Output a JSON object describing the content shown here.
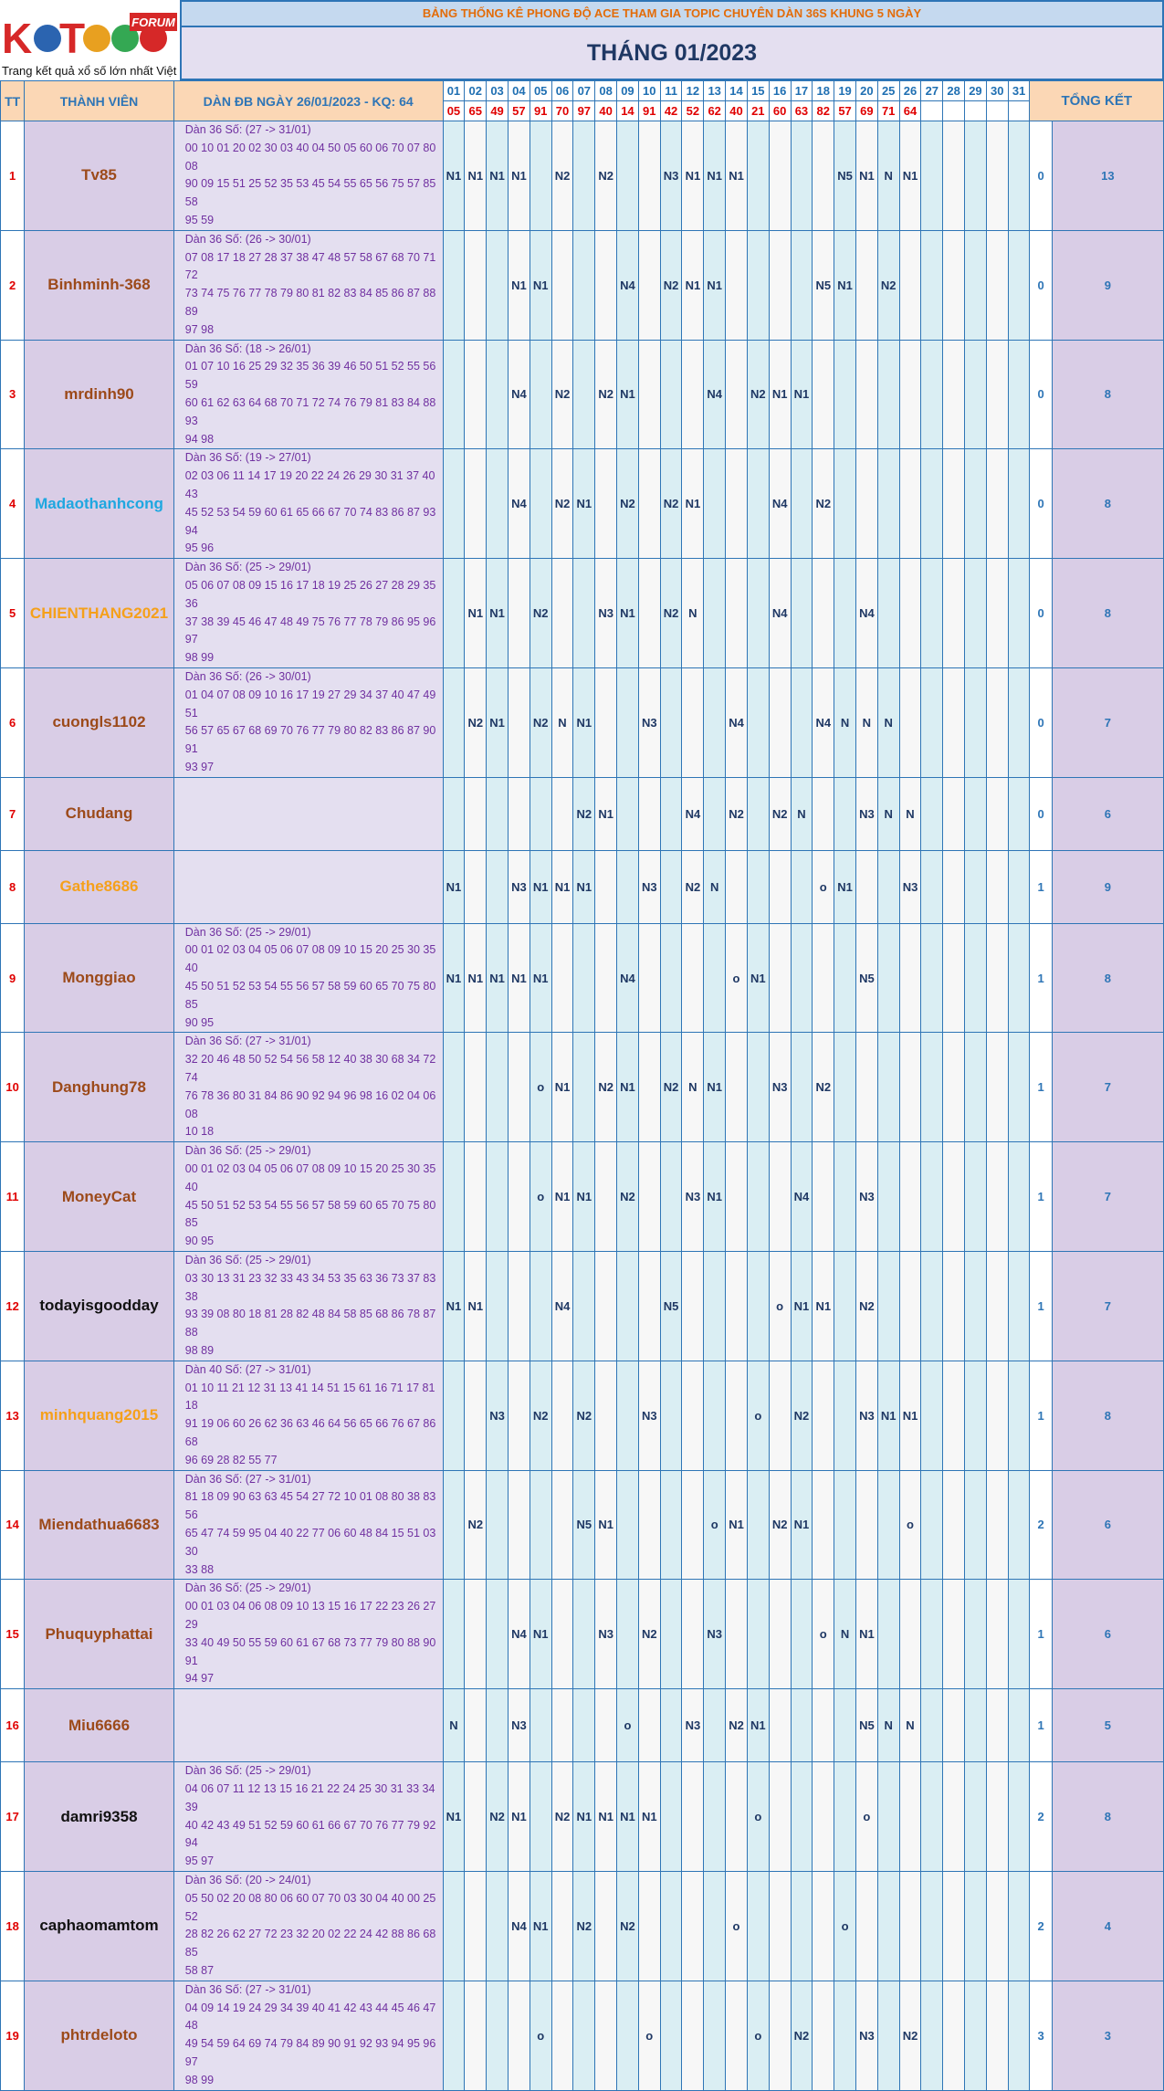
{
  "logo": {
    "main": "KETQUA2",
    "tag": "FORUM",
    "slogan": "Trang kết quả xổ số lớn nhất Việt Nam"
  },
  "banner": "BẢNG THỐNG KÊ PHONG ĐỘ ACE THAM GIA TOPIC CHUYÊN DÀN 36S KHUNG 5 NGÀY",
  "month": "THÁNG 01/2023",
  "headers": {
    "tt": "TT",
    "member": "THÀNH VIÊN",
    "dan": "DÀN ĐB NGÀY 26/01/2023 - KQ: 64",
    "summary": "TỔNG KẾT"
  },
  "days": [
    "01",
    "02",
    "03",
    "04",
    "05",
    "06",
    "07",
    "08",
    "09",
    "10",
    "11",
    "12",
    "13",
    "14",
    "15",
    "16",
    "17",
    "18",
    "19",
    "20",
    "25",
    "26",
    "27",
    "28",
    "29",
    "30",
    "31"
  ],
  "results": [
    "05",
    "65",
    "49",
    "57",
    "91",
    "70",
    "97",
    "40",
    "14",
    "91",
    "42",
    "52",
    "62",
    "40",
    "21",
    "60",
    "63",
    "82",
    "57",
    "69",
    "71",
    "64",
    "",
    "",
    "",
    "",
    ""
  ],
  "colors": {
    "header_bg": "#fbd7b5",
    "member_bg": "#d9cde6",
    "dan_bg": "#e4dff0",
    "day_even": "#daeef3",
    "accent_blue": "#2e75b6",
    "result_red": "#e00000",
    "banner_orange": "#e36c09"
  },
  "rows": [
    {
      "tt": "1",
      "name": "Tv85",
      "color": "brown",
      "dan": [
        "Dàn 36 Số: (27 -> 31/01)",
        "00 10 01 20 02 30 03 40 04 50 05 60 06 70 07 80 08",
        "90 09 15 51 25 52 35 53 45 54 55 65 56 75 57 85 58",
        "95 59"
      ],
      "marks": [
        "N1",
        "N1",
        "N1",
        "N1",
        "",
        "N2",
        "",
        "N2",
        "",
        "",
        "N3",
        "N1",
        "N1",
        "N1",
        "",
        "",
        "",
        "",
        "N5",
        "N1",
        "N",
        "N1",
        "",
        "",
        "",
        "",
        ""
      ],
      "s1": "0",
      "s2": "13"
    },
    {
      "tt": "2",
      "name": "Binhminh-368",
      "color": "brown",
      "dan": [
        "Dàn 36 Số: (26 -> 30/01)",
        "07 08 17 18 27 28 37 38 47 48 57 58 67 68 70 71 72",
        "73 74 75 76 77 78 79 80 81 82 83 84 85 86 87 88 89",
        "97 98"
      ],
      "marks": [
        "",
        "",
        "",
        "N1",
        "N1",
        "",
        "",
        "",
        "N4",
        "",
        "N2",
        "N1",
        "N1",
        "",
        "",
        "",
        "",
        "N5",
        "N1",
        "",
        "N2",
        "",
        "",
        "",
        "",
        "",
        ""
      ],
      "s1": "0",
      "s2": "9"
    },
    {
      "tt": "3",
      "name": "mrdinh90",
      "color": "brown",
      "dan": [
        "Dàn 36 Số: (18 -> 26/01)",
        "01 07 10 16 25 29 32 35 36 39 46 50 51 52 55 56 59",
        "60 61 62 63 64 68 70 71 72 74 76 79 81 83 84 88 93",
        "94 98"
      ],
      "marks": [
        "",
        "",
        "",
        "N4",
        "",
        "N2",
        "",
        "N2",
        "N1",
        "",
        "",
        "",
        "N4",
        "",
        "N2",
        "N1",
        "N1",
        "",
        "",
        "",
        "",
        "",
        "",
        "",
        "",
        "",
        ""
      ],
      "s1": "0",
      "s2": "8"
    },
    {
      "tt": "4",
      "name": "Madaothanhcong",
      "color": "blue",
      "dan": [
        "Dàn 36 Số: (19 -> 27/01)",
        "02 03 06 11 14 17 19 20 22 24 26 29 30 31 37 40 43",
        "45 52 53 54 59 60 61 65 66 67 70 74 83 86 87 93 94",
        "95 96"
      ],
      "marks": [
        "",
        "",
        "",
        "N4",
        "",
        "N2",
        "N1",
        "",
        "N2",
        "",
        "N2",
        "N1",
        "",
        "",
        "",
        "N4",
        "",
        "N2",
        "",
        "",
        "",
        "",
        "",
        "",
        "",
        "",
        ""
      ],
      "s1": "0",
      "s2": "8"
    },
    {
      "tt": "5",
      "name": "CHIENTHANG2021",
      "color": "orange",
      "dan": [
        "Dàn 36 Số: (25 -> 29/01)",
        "05 06 07 08 09 15 16 17 18 19 25 26 27 28 29 35 36",
        "37 38 39 45 46 47 48 49 75 76 77 78 79 86 95 96 97",
        "98 99"
      ],
      "marks": [
        "",
        "N1",
        "N1",
        "",
        "N2",
        "",
        "",
        "N3",
        "N1",
        "",
        "N2",
        "N",
        "",
        "",
        "",
        "N4",
        "",
        "",
        "",
        "N4",
        "",
        "",
        "",
        "",
        "",
        "",
        ""
      ],
      "s1": "0",
      "s2": "8"
    },
    {
      "tt": "6",
      "name": "cuongls1102",
      "color": "brown",
      "dan": [
        "Dàn 36 Số: (26 -> 30/01)",
        "01 04 07 08 09 10 16 17 19 27 29 34 37 40 47 49 51",
        "56 57 65 67 68 69 70 76 77 79 80 82 83 86 87 90 91",
        "93 97"
      ],
      "marks": [
        "",
        "N2",
        "N1",
        "",
        "N2",
        "N",
        "N1",
        "",
        "",
        "N3",
        "",
        "",
        "",
        "N4",
        "",
        "",
        "",
        "N4",
        "N",
        "N",
        "N",
        "",
        "",
        "",
        "",
        "",
        ""
      ],
      "s1": "0",
      "s2": "7"
    },
    {
      "tt": "7",
      "name": "Chudang",
      "color": "brown",
      "dan": [],
      "marks": [
        "",
        "",
        "",
        "",
        "",
        "",
        "N2",
        "N1",
        "",
        "",
        "",
        "N4",
        "",
        "N2",
        "",
        "N2",
        "N",
        "",
        "",
        "N3",
        "N",
        "N",
        "",
        "",
        "",
        "",
        ""
      ],
      "s1": "0",
      "s2": "6"
    },
    {
      "tt": "8",
      "name": "Gathe8686",
      "color": "orange",
      "dan": [],
      "marks": [
        "N1",
        "",
        "",
        "N3",
        "N1",
        "N1",
        "N1",
        "",
        "",
        "N3",
        "",
        "N2",
        "N",
        "",
        "",
        "",
        "",
        "o",
        "N1",
        "",
        "",
        "N3",
        "",
        "",
        "",
        "",
        ""
      ],
      "s1": "1",
      "s2": "9"
    },
    {
      "tt": "9",
      "name": "Monggiao",
      "color": "brown",
      "dan": [
        "Dàn 36 Số: (25 -> 29/01)",
        "00 01 02 03 04 05 06 07 08 09 10 15 20 25 30 35 40",
        "45 50 51 52 53 54 55 56 57 58 59 60 65 70 75 80 85",
        "90 95"
      ],
      "marks": [
        "N1",
        "N1",
        "N1",
        "N1",
        "N1",
        "",
        "",
        "",
        "N4",
        "",
        "",
        "",
        "",
        "o",
        "N1",
        "",
        "",
        "",
        "",
        "N5",
        "",
        "",
        "",
        "",
        "",
        "",
        ""
      ],
      "s1": "1",
      "s2": "8"
    },
    {
      "tt": "10",
      "name": "Danghung78",
      "color": "brown",
      "dan": [
        "Dàn 36 Số: (27 -> 31/01)",
        "32 20 46 48 50 52 54 56 58 12 40 38 30 68 34 72 74",
        "76 78 36 80 31 84 86 90 92 94 96 98 16 02 04 06 08",
        "10 18"
      ],
      "marks": [
        "",
        "",
        "",
        "",
        "o",
        "N1",
        "",
        "N2",
        "N1",
        "",
        "N2",
        "N",
        "N1",
        "",
        "",
        "N3",
        "",
        "N2",
        "",
        "",
        "",
        "",
        "",
        "",
        "",
        "",
        ""
      ],
      "s1": "1",
      "s2": "7"
    },
    {
      "tt": "11",
      "name": "MoneyCat",
      "color": "brown",
      "dan": [
        "Dàn 36 Số: (25 -> 29/01)",
        "00 01 02 03 04 05 06 07 08 09 10 15 20 25 30 35 40",
        "45 50 51 52 53 54 55 56 57 58 59 60 65 70 75 80 85",
        "90 95"
      ],
      "marks": [
        "",
        "",
        "",
        "",
        "o",
        "N1",
        "N1",
        "",
        "N2",
        "",
        "",
        "N3",
        "N1",
        "",
        "",
        "",
        "N4",
        "",
        "",
        "N3",
        "",
        "",
        "",
        "",
        "",
        "",
        ""
      ],
      "s1": "1",
      "s2": "7"
    },
    {
      "tt": "12",
      "name": "todayisgoodday",
      "color": "black",
      "dan": [
        "Dàn 36 Số: (25 -> 29/01)",
        "03 30 13 31 23 32 33 43 34 53 35 63 36 73 37 83 38",
        "93 39 08 80 18 81 28 82 48 84 58 85 68 86 78 87 88",
        "98 89"
      ],
      "marks": [
        "N1",
        "N1",
        "",
        "",
        "",
        "N4",
        "",
        "",
        "",
        "",
        "N5",
        "",
        "",
        "",
        "",
        "o",
        "N1",
        "N1",
        "",
        "N2",
        "",
        "",
        "",
        "",
        "",
        "",
        ""
      ],
      "s1": "1",
      "s2": "7"
    },
    {
      "tt": "13",
      "name": "minhquang2015",
      "color": "orange",
      "dan": [
        "Dàn 40 Số: (27 -> 31/01)",
        "01 10 11 21 12 31 13 41 14 51 15 61 16 71 17 81 18",
        "91 19 06 60 26 62 36 63 46 64 56 65 66 76 67 86 68",
        "96 69 28 82 55 77"
      ],
      "marks": [
        "",
        "",
        "N3",
        "",
        "N2",
        "",
        "N2",
        "",
        "",
        "N3",
        "",
        "",
        "",
        "",
        "o",
        "",
        "N2",
        "",
        "",
        "N3",
        "N1",
        "N1",
        "",
        "",
        "",
        "",
        ""
      ],
      "s1": "1",
      "s2": "8"
    },
    {
      "tt": "14",
      "name": "Miendathua6683",
      "color": "brown",
      "dan": [
        "Dàn 36 Số: (27 -> 31/01)",
        "81 18 09 90 63 63 45 54 27 72 10 01 08 80 38 83 56",
        "65 47 74 59 95 04 40 22 77 06 60 48 84 15 51 03 30",
        "33 88"
      ],
      "marks": [
        "",
        "N2",
        "",
        "",
        "",
        "",
        "N5",
        "N1",
        "",
        "",
        "",
        "",
        "o",
        "N1",
        "",
        "N2",
        "N1",
        "",
        "",
        "",
        "",
        "o",
        "",
        "",
        "",
        "",
        ""
      ],
      "s1": "2",
      "s2": "6"
    },
    {
      "tt": "15",
      "name": "Phuquyphattai",
      "color": "brown",
      "dan": [
        "Dàn 36 Số: (25 -> 29/01)",
        "00 01 03 04 06 08 09 10 13 15 16 17 22 23 26 27 29",
        "33 40 49 50 55 59 60 61 67 68 73 77 79 80 88 90 91",
        "94 97"
      ],
      "marks": [
        "",
        "",
        "",
        "N4",
        "N1",
        "",
        "",
        "N3",
        "",
        "N2",
        "",
        "",
        "N3",
        "",
        "",
        "",
        "",
        "o",
        "N",
        "N1",
        "",
        "",
        "",
        "",
        "",
        "",
        ""
      ],
      "s1": "1",
      "s2": "6"
    },
    {
      "tt": "16",
      "name": "Miu6666",
      "color": "brown",
      "dan": [],
      "marks": [
        "N",
        "",
        "",
        "N3",
        "",
        "",
        "",
        "",
        "o",
        "",
        "",
        "N3",
        "",
        "N2",
        "N1",
        "",
        "",
        "",
        "",
        "N5",
        "N",
        "N",
        "",
        "",
        "",
        "",
        ""
      ],
      "s1": "1",
      "s2": "5"
    },
    {
      "tt": "17",
      "name": "damri9358",
      "color": "black",
      "dan": [
        "Dàn 36 Số: (25 -> 29/01)",
        "04 06 07 11 12 13 15 16 21 22 24 25 30 31 33 34 39",
        "40 42 43 49 51 52 59 60 61 66 67 70 76 77 79 92 94",
        "95 97"
      ],
      "marks": [
        "N1",
        "",
        "N2",
        "N1",
        "",
        "N2",
        "N1",
        "N1",
        "N1",
        "N1",
        "",
        "",
        "",
        "",
        "o",
        "",
        "",
        "",
        "",
        "o",
        "",
        "",
        "",
        "",
        "",
        "",
        ""
      ],
      "s1": "2",
      "s2": "8"
    },
    {
      "tt": "18",
      "name": "caphaomamtom",
      "color": "black",
      "dan": [
        "Dàn 36 Số: (20 -> 24/01)",
        "05 50 02 20 08 80 06 60 07 70 03 30 04 40 00 25 52",
        "28 82 26 62 27 72 23 32 20 02 22 24 42 88 86 68 85",
        "58 87"
      ],
      "marks": [
        "",
        "",
        "",
        "N4",
        "N1",
        "",
        "N2",
        "",
        "N2",
        "",
        "",
        "",
        "",
        "o",
        "",
        "",
        "",
        "",
        "o",
        "",
        "",
        "",
        "",
        "",
        "",
        "",
        ""
      ],
      "s1": "2",
      "s2": "4"
    },
    {
      "tt": "19",
      "name": "phtrdeloto",
      "color": "brown",
      "dan": [
        "Dàn 36 Số: (27 -> 31/01)",
        "04 09 14 19 24 29 34 39 40 41 42 43 44 45 46 47 48",
        "49 54 59 64 69 74 79 84 89 90 91 92 93 94 95 96 97",
        "98 99"
      ],
      "marks": [
        "",
        "",
        "",
        "",
        "o",
        "",
        "",
        "",
        "",
        "o",
        "",
        "",
        "",
        "",
        "o",
        "",
        "N2",
        "",
        "",
        "N3",
        "",
        "N2",
        "",
        "",
        "",
        "",
        ""
      ],
      "s1": "3",
      "s2": "3"
    }
  ]
}
